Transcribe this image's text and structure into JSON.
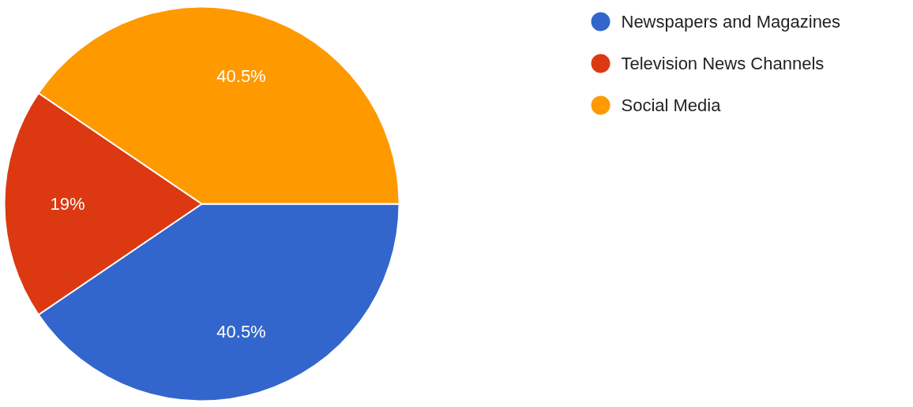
{
  "chart_data": {
    "type": "pie",
    "categories": [
      "Newspapers and Magazines",
      "Television News Channels",
      "Social Media"
    ],
    "values": [
      40.5,
      19,
      40.5
    ],
    "colors": [
      "#3366cc",
      "#dc3912",
      "#ff9900"
    ],
    "value_labels": [
      "40.5%",
      "19%",
      "40.5%"
    ],
    "legend": "top right"
  }
}
